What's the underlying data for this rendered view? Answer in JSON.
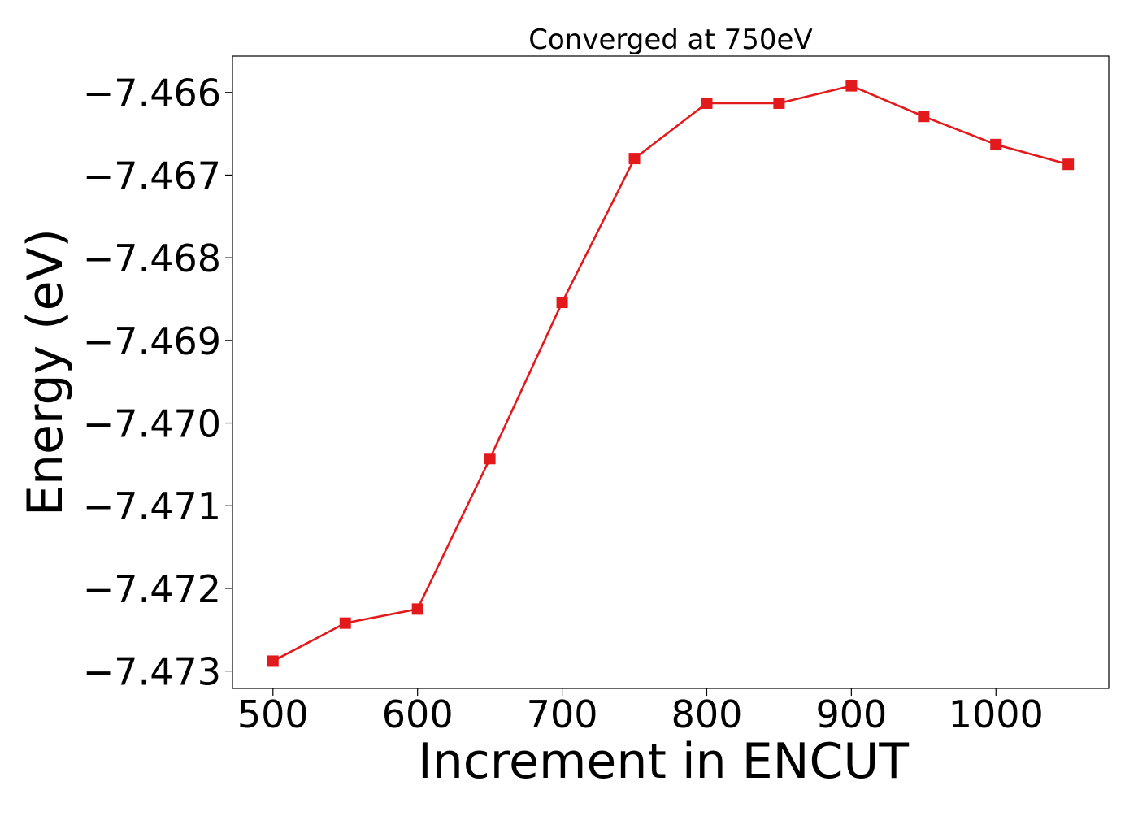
{
  "chart_data": {
    "type": "line",
    "title": "Converged at 750eV",
    "xlabel": "Increment in ENCUT",
    "ylabel": "Energy (eV)",
    "xlim": [
      472,
      1078
    ],
    "ylim": [
      -7.47321,
      -7.46556
    ],
    "x_ticks": [
      500,
      600,
      700,
      800,
      900,
      1000
    ],
    "x_tick_labels": [
      "500",
      "600",
      "700",
      "800",
      "900",
      "1000"
    ],
    "y_ticks": [
      -7.466,
      -7.467,
      -7.468,
      -7.469,
      -7.47,
      -7.471,
      -7.472,
      -7.473
    ],
    "y_tick_labels": [
      "−7.466",
      "−7.467",
      "−7.468",
      "−7.469",
      "−7.470",
      "−7.471",
      "−7.472",
      "−7.473"
    ],
    "grid": false,
    "legend": false,
    "series": [
      {
        "color": "#e31a1c",
        "marker": "square",
        "x": [
          500,
          550,
          600,
          650,
          700,
          750,
          800,
          850,
          900,
          950,
          1000,
          1050
        ],
        "y": [
          -7.47288,
          -7.47242,
          -7.47225,
          -7.47043,
          -7.46854,
          -7.4668,
          -7.46613,
          -7.46613,
          -7.46592,
          -7.46629,
          -7.46663,
          -7.46687
        ]
      }
    ]
  }
}
